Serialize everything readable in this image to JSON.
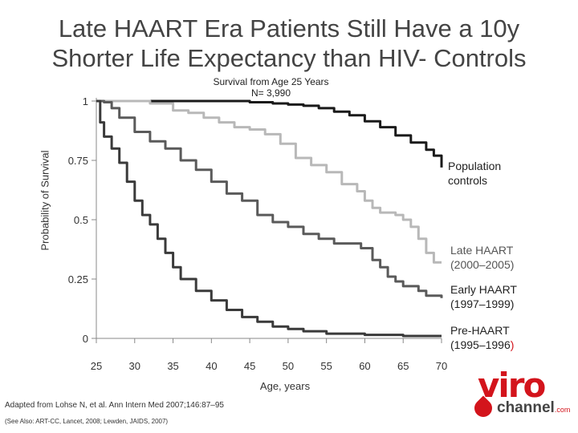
{
  "slide": {
    "title_line1": "Late HAART Era Patients Still Have a 10y",
    "title_line2": "Shorter Life Expectancy than HIV- Controls",
    "subtitle_line1": "Survival from Age 25 Years",
    "subtitle_line2": "N= 3,990",
    "citation": "Adapted from Lohse N, et al.  Ann Intern Med 2007;146:87–95",
    "see_also": "(See Also: ART-CC, Lancet, 2008; Lewden, JAIDS, 2007)",
    "logo": {
      "viro": "viro",
      "channel": "channel",
      "com": ".com"
    }
  },
  "chart_data": {
    "type": "line",
    "title": "Survival from Age 25 Years",
    "xlabel": "Age, years",
    "ylabel": "Probability of Survival",
    "xlim": [
      25,
      70
    ],
    "ylim": [
      0,
      1
    ],
    "x_ticks": [
      "25",
      "30",
      "35",
      "40",
      "45",
      "50",
      "55",
      "60",
      "65",
      "70"
    ],
    "y_ticks": [
      "0",
      "0.25",
      "0.5",
      "0.75",
      "1"
    ],
    "grid": false,
    "colors": {
      "population": "#1a1a1a",
      "late": "#b8b8b8",
      "early": "#5a5a5a",
      "pre": "#3a3a3a",
      "accent": "#d3141c"
    },
    "series": [
      {
        "name": "Population controls",
        "label_lines": [
          "Population",
          "controls"
        ],
        "style": "population",
        "points": [
          [
            32,
            1.0
          ],
          [
            40,
            1.0
          ],
          [
            45,
            0.995
          ],
          [
            48,
            0.99
          ],
          [
            50,
            0.985
          ],
          [
            52,
            0.98
          ],
          [
            54,
            0.97
          ],
          [
            56,
            0.955
          ],
          [
            58,
            0.94
          ],
          [
            60,
            0.915
          ],
          [
            62,
            0.89
          ],
          [
            64,
            0.855
          ],
          [
            66,
            0.825
          ],
          [
            68,
            0.795
          ],
          [
            69,
            0.77
          ],
          [
            70,
            0.72
          ]
        ]
      },
      {
        "name": "Late HAART (2000–2005)",
        "label_lines": [
          "Late HAART",
          "(2000–2005)"
        ],
        "style": "late",
        "points": [
          [
            25,
            1.0
          ],
          [
            28,
            1.0
          ],
          [
            32,
            0.99
          ],
          [
            35,
            0.96
          ],
          [
            37,
            0.95
          ],
          [
            39,
            0.93
          ],
          [
            41,
            0.91
          ],
          [
            43,
            0.89
          ],
          [
            45,
            0.88
          ],
          [
            47,
            0.86
          ],
          [
            49,
            0.82
          ],
          [
            51,
            0.76
          ],
          [
            53,
            0.73
          ],
          [
            55,
            0.7
          ],
          [
            57,
            0.65
          ],
          [
            59,
            0.62
          ],
          [
            60,
            0.58
          ],
          [
            61,
            0.55
          ],
          [
            62,
            0.53
          ],
          [
            64,
            0.52
          ],
          [
            65,
            0.5
          ],
          [
            66,
            0.47
          ],
          [
            67,
            0.42
          ],
          [
            68,
            0.36
          ],
          [
            69,
            0.32
          ],
          [
            70,
            0.32
          ]
        ]
      },
      {
        "name": "Early HAART (1997–1999)",
        "label_lines": [
          "Early HAART",
          "(1997–1999)"
        ],
        "style": "early",
        "points": [
          [
            25,
            1.0
          ],
          [
            26,
            0.995
          ],
          [
            27,
            0.97
          ],
          [
            28,
            0.93
          ],
          [
            30,
            0.87
          ],
          [
            32,
            0.83
          ],
          [
            34,
            0.8
          ],
          [
            36,
            0.75
          ],
          [
            38,
            0.71
          ],
          [
            40,
            0.66
          ],
          [
            42,
            0.61
          ],
          [
            44,
            0.58
          ],
          [
            46,
            0.52
          ],
          [
            48,
            0.49
          ],
          [
            50,
            0.47
          ],
          [
            52,
            0.44
          ],
          [
            54,
            0.42
          ],
          [
            56,
            0.4
          ],
          [
            58,
            0.4
          ],
          [
            59.5,
            0.38
          ],
          [
            61,
            0.33
          ],
          [
            62,
            0.3
          ],
          [
            63,
            0.26
          ],
          [
            64,
            0.24
          ],
          [
            65,
            0.22
          ],
          [
            67,
            0.2
          ],
          [
            68,
            0.18
          ],
          [
            70,
            0.17
          ]
        ]
      },
      {
        "name": "Pre-HAART (1995–1996)",
        "label_lines": [
          "Pre-HAART",
          "(1995–1996",
          ")"
        ],
        "style": "pre",
        "points": [
          [
            25,
            1.0
          ],
          [
            25.5,
            0.91
          ],
          [
            26,
            0.85
          ],
          [
            27,
            0.8
          ],
          [
            28,
            0.74
          ],
          [
            29,
            0.66
          ],
          [
            30,
            0.58
          ],
          [
            31,
            0.52
          ],
          [
            32,
            0.48
          ],
          [
            33,
            0.42
          ],
          [
            34,
            0.36
          ],
          [
            35,
            0.3
          ],
          [
            36,
            0.25
          ],
          [
            38,
            0.2
          ],
          [
            40,
            0.16
          ],
          [
            42,
            0.12
          ],
          [
            44,
            0.09
          ],
          [
            46,
            0.07
          ],
          [
            48,
            0.05
          ],
          [
            50,
            0.04
          ],
          [
            52,
            0.03
          ],
          [
            55,
            0.02
          ],
          [
            60,
            0.015
          ],
          [
            65,
            0.01
          ],
          [
            70,
            0.01
          ]
        ]
      }
    ]
  }
}
